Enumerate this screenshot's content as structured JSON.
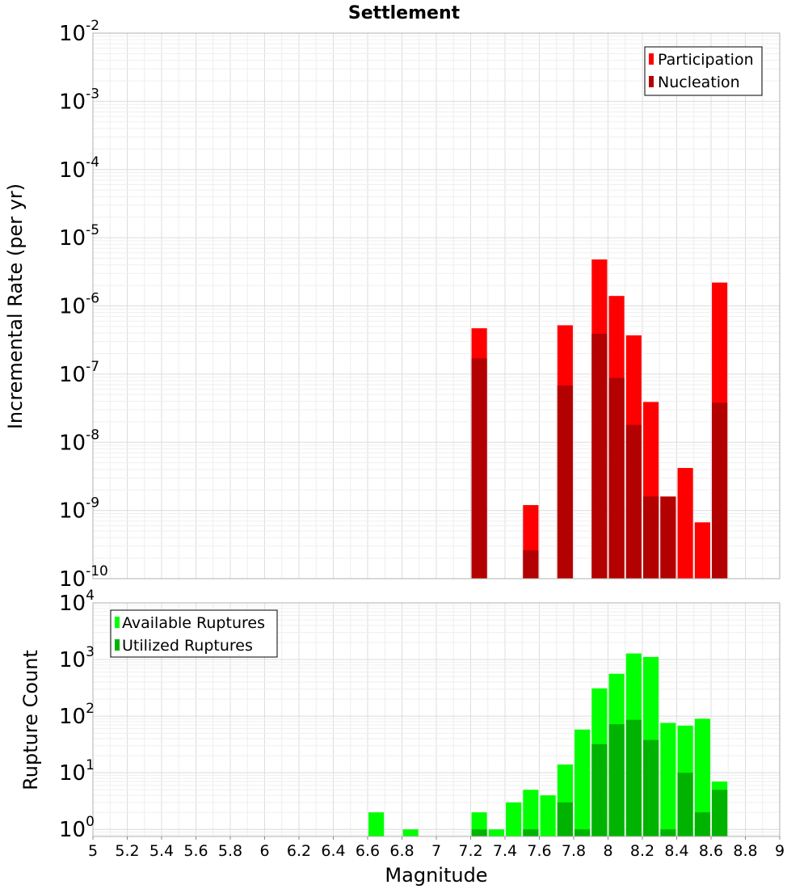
{
  "chart_data": [
    {
      "type": "bar",
      "title": "Settlement",
      "xlabel": "",
      "ylabel": "Incremental Rate (per yr)",
      "yscale": "log",
      "ylim": [
        1e-10,
        0.01
      ],
      "xlim": [
        5,
        9
      ],
      "grid": true,
      "legend_position": "top-right",
      "bar_width": 0.09,
      "series": [
        {
          "name": "Participation",
          "color": "#ff0000",
          "x": [
            7.25,
            7.55,
            7.75,
            7.95,
            8.05,
            8.15,
            8.25,
            8.35,
            8.45,
            8.55,
            8.65
          ],
          "values": [
            4.7e-07,
            1.2e-09,
            5.2e-07,
            4.8e-06,
            1.4e-06,
            3.7e-07,
            3.9e-08,
            1.6e-09,
            4.2e-09,
            6.7e-10,
            2.2e-06
          ]
        },
        {
          "name": "Nucleation",
          "color": "#b30000",
          "x": [
            7.25,
            7.55,
            7.75,
            7.95,
            8.05,
            8.15,
            8.25,
            8.35,
            8.65
          ],
          "values": [
            1.7e-07,
            2.6e-10,
            6.8e-08,
            3.9e-07,
            8.8e-08,
            1.8e-08,
            1.6e-09,
            1.6e-09,
            3.8e-08
          ]
        }
      ]
    },
    {
      "type": "bar",
      "title": "",
      "xlabel": "Magnitude",
      "ylabel": "Rupture Count",
      "yscale": "log",
      "ylim": [
        0.75,
        10000
      ],
      "xlim": [
        5,
        9
      ],
      "xticks": [
        "5",
        "5.2",
        "5.4",
        "5.6",
        "5.8",
        "6",
        "6.2",
        "6.4",
        "6.6",
        "6.8",
        "7",
        "7.2",
        "7.4",
        "7.6",
        "7.8",
        "8",
        "8.2",
        "8.4",
        "8.6",
        "8.8",
        "9"
      ],
      "grid": true,
      "legend_position": "top-left",
      "bar_width": 0.09,
      "series": [
        {
          "name": "Available Ruptures",
          "color": "#00ff00",
          "x": [
            6.65,
            6.85,
            7.25,
            7.35,
            7.45,
            7.55,
            7.65,
            7.75,
            7.85,
            7.95,
            8.05,
            8.15,
            8.25,
            8.35,
            8.45,
            8.55,
            8.65
          ],
          "values": [
            2,
            1,
            2,
            1,
            3,
            5,
            4,
            14,
            58,
            310,
            560,
            1280,
            1110,
            76,
            68,
            90,
            7
          ]
        },
        {
          "name": "Utilized Ruptures",
          "color": "#00b300",
          "x": [
            7.25,
            7.55,
            7.75,
            7.85,
            7.95,
            8.05,
            8.15,
            8.25,
            8.35,
            8.45,
            8.55,
            8.65
          ],
          "values": [
            1,
            1,
            3,
            1,
            32,
            72,
            86,
            38,
            1,
            10,
            2,
            5
          ]
        }
      ]
    }
  ]
}
